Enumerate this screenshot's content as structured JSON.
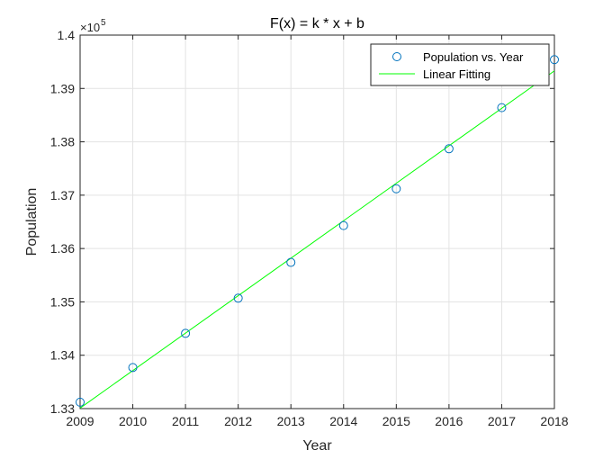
{
  "chart_data": {
    "type": "scatter",
    "title": "F(x) = k * x + b",
    "xlabel": "Year",
    "ylabel": "Population",
    "xlim": [
      2009,
      2018
    ],
    "ylim": [
      133000,
      140000
    ],
    "x_ticks": [
      2009,
      2010,
      2011,
      2012,
      2013,
      2014,
      2015,
      2016,
      2017,
      2018
    ],
    "y_ticks": [
      133000,
      134000,
      135000,
      136000,
      137000,
      138000,
      139000,
      140000
    ],
    "y_tick_labels": [
      "1.33",
      "1.34",
      "1.35",
      "1.36",
      "1.37",
      "1.38",
      "1.39",
      "1.4"
    ],
    "y_exponent_label": "×10",
    "y_exponent_power": "5",
    "grid": true,
    "legend_position": "top-right",
    "series": [
      {
        "name": "Population vs. Year",
        "kind": "markers",
        "marker": "circle",
        "color": "#0072bd",
        "x": [
          2009,
          2010,
          2011,
          2012,
          2013,
          2014,
          2015,
          2016,
          2017,
          2018
        ],
        "y": [
          133120,
          133770,
          134410,
          135070,
          135740,
          136430,
          137120,
          137870,
          138640,
          139540
        ]
      },
      {
        "name": "Linear Fitting",
        "kind": "line",
        "color": "#00ff00",
        "x": [
          2009,
          2018
        ],
        "y": [
          133010,
          139330
        ]
      }
    ]
  }
}
